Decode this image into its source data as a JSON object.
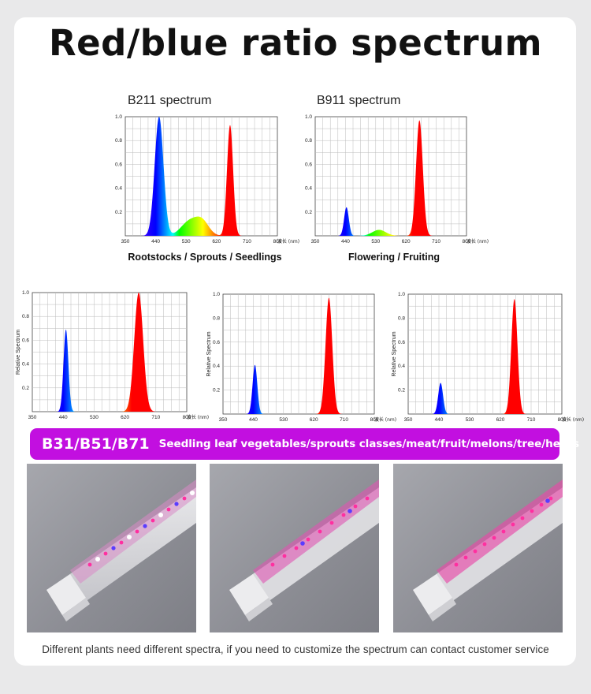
{
  "title": "Red/blue ratio spectrum",
  "top_charts": [
    {
      "label": "B211 spectrum",
      "caption": "Rootstocks / Sprouts / Seedlings"
    },
    {
      "label": "B911 spectrum",
      "caption": "Flowering / Fruiting"
    }
  ],
  "banner": {
    "codes": "B31/B51/B71",
    "description": "Seedling leaf vegetables/sprouts classes/meat/fruit/melons/tree/herbs"
  },
  "footer": "Different plants need different spectra, if you need to customize the spectrum can contact customer service",
  "photos": [
    {
      "name": "photo-b31-light-tube",
      "accent": "#e8318f"
    },
    {
      "name": "photo-b51-light-tube",
      "accent": "#e8318f"
    },
    {
      "name": "photo-b71-light-tube",
      "accent": "#e8318f"
    }
  ],
  "chart_data": [
    {
      "type": "area",
      "title": "B211 spectrum",
      "xlabel": "波长 (nm)",
      "ylabel": "",
      "xlim": [
        350,
        800
      ],
      "ylim": [
        0,
        1.0
      ],
      "x_ticks": [
        "350",
        "440",
        "530",
        "620",
        "710",
        "800"
      ],
      "y_ticks": [
        "0.2",
        "0.4",
        "0.6",
        "0.8",
        "1.0"
      ],
      "peaks": [
        {
          "center": 450,
          "height": 1.0,
          "width": 13
        },
        {
          "center": 540,
          "height": 0.12,
          "width": 25
        },
        {
          "center": 578,
          "height": 0.11,
          "width": 20
        },
        {
          "center": 660,
          "height": 0.93,
          "width": 9
        }
      ],
      "grid": true
    },
    {
      "type": "area",
      "title": "B911 spectrum",
      "xlabel": "波长 (nm)",
      "ylabel": "",
      "xlim": [
        350,
        800
      ],
      "ylim": [
        0,
        1.0
      ],
      "x_ticks": [
        "350",
        "440",
        "530",
        "620",
        "710",
        "800"
      ],
      "y_ticks": [
        "0.2",
        "0.4",
        "0.6",
        "0.8",
        "1.0"
      ],
      "peaks": [
        {
          "center": 443,
          "height": 0.24,
          "width": 7
        },
        {
          "center": 540,
          "height": 0.05,
          "width": 20
        },
        {
          "center": 660,
          "height": 0.97,
          "width": 10
        }
      ],
      "grid": true
    },
    {
      "type": "area",
      "title": "",
      "xlabel": "波长 (nm)",
      "ylabel": "Relative Spectrum",
      "xlim": [
        350,
        800
      ],
      "ylim": [
        0,
        1.0
      ],
      "x_ticks": [
        "350",
        "440",
        "530",
        "620",
        "710",
        "800"
      ],
      "y_ticks": [
        "0.2",
        "0.4",
        "0.6",
        "0.8",
        "1.0"
      ],
      "peaks": [
        {
          "center": 448,
          "height": 0.69,
          "width": 7
        },
        {
          "center": 660,
          "height": 1.0,
          "width": 13
        }
      ],
      "grid": true
    },
    {
      "type": "area",
      "title": "",
      "xlabel": "波长 (nm)",
      "ylabel": "Relative Spectrum",
      "xlim": [
        350,
        800
      ],
      "ylim": [
        0,
        1.0
      ],
      "x_ticks": [
        "350",
        "440",
        "530",
        "620",
        "710",
        "800"
      ],
      "y_ticks": [
        "0.2",
        "0.4",
        "0.6",
        "0.8",
        "1.0"
      ],
      "peaks": [
        {
          "center": 445,
          "height": 0.41,
          "width": 7
        },
        {
          "center": 665,
          "height": 0.97,
          "width": 10
        }
      ],
      "grid": true
    },
    {
      "type": "area",
      "title": "",
      "xlabel": "波长 (nm)",
      "ylabel": "Relative Spectrum",
      "xlim": [
        350,
        800
      ],
      "ylim": [
        0,
        1.0
      ],
      "x_ticks": [
        "350",
        "440",
        "530",
        "620",
        "710",
        "800"
      ],
      "y_ticks": [
        "0.2",
        "0.4",
        "0.6",
        "0.8",
        "1.0"
      ],
      "peaks": [
        {
          "center": 445,
          "height": 0.26,
          "width": 7
        },
        {
          "center": 661,
          "height": 0.96,
          "width": 9
        }
      ],
      "grid": true
    }
  ]
}
